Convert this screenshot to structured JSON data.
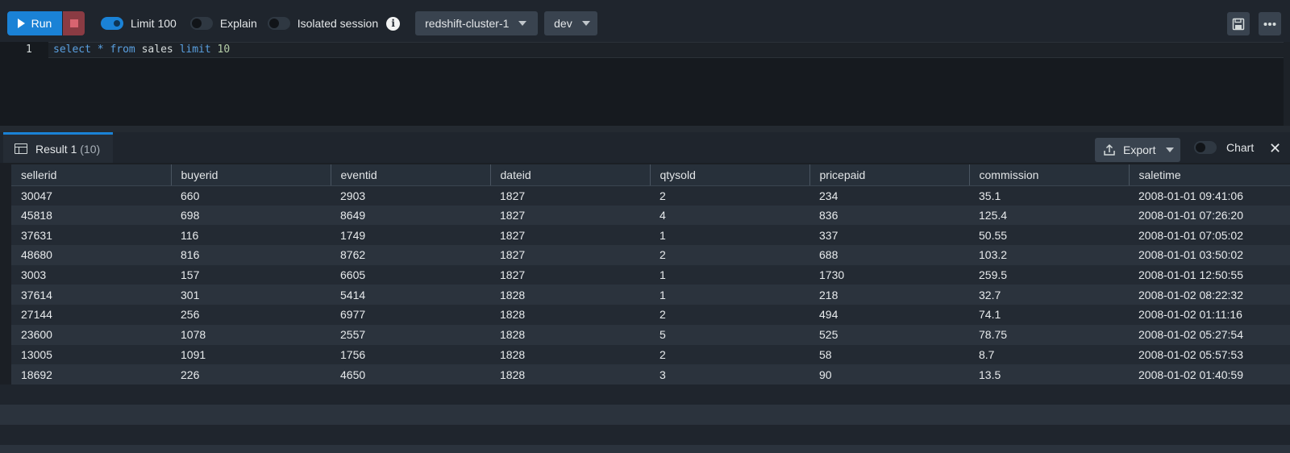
{
  "toolbar": {
    "run_label": "Run",
    "limit_label": "Limit 100",
    "explain_label": "Explain",
    "isolated_label": "Isolated session",
    "cluster": "redshift-cluster-1",
    "database": "dev"
  },
  "editor": {
    "line_number": "1",
    "tokens": [
      "select",
      "*",
      "from",
      "sales",
      "limit",
      "10"
    ]
  },
  "results": {
    "tab_label": "Result 1",
    "tab_count": "(10)",
    "export_label": "Export",
    "chart_label": "Chart",
    "columns": [
      "sellerid",
      "buyerid",
      "eventid",
      "dateid",
      "qtysold",
      "pricepaid",
      "commission",
      "saletime"
    ],
    "rows": [
      [
        "30047",
        "660",
        "2903",
        "1827",
        "2",
        "234",
        "35.1",
        "2008-01-01 09:41:06"
      ],
      [
        "45818",
        "698",
        "8649",
        "1827",
        "4",
        "836",
        "125.4",
        "2008-01-01 07:26:20"
      ],
      [
        "37631",
        "116",
        "1749",
        "1827",
        "1",
        "337",
        "50.55",
        "2008-01-01 07:05:02"
      ],
      [
        "48680",
        "816",
        "8762",
        "1827",
        "2",
        "688",
        "103.2",
        "2008-01-01 03:50:02"
      ],
      [
        "3003",
        "157",
        "6605",
        "1827",
        "1",
        "1730",
        "259.5",
        "2008-01-01 12:50:55"
      ],
      [
        "37614",
        "301",
        "5414",
        "1828",
        "1",
        "218",
        "32.7",
        "2008-01-02 08:22:32"
      ],
      [
        "27144",
        "256",
        "6977",
        "1828",
        "2",
        "494",
        "74.1",
        "2008-01-02 01:11:16"
      ],
      [
        "23600",
        "1078",
        "2557",
        "1828",
        "5",
        "525",
        "78.75",
        "2008-01-02 05:27:54"
      ],
      [
        "13005",
        "1091",
        "1756",
        "1828",
        "2",
        "58",
        "8.7",
        "2008-01-02 05:57:53"
      ],
      [
        "18692",
        "226",
        "4650",
        "1828",
        "3",
        "90",
        "13.5",
        "2008-01-02 01:40:59"
      ]
    ]
  },
  "colors": {
    "accent": "#1a82d6",
    "stop": "#8a3b43",
    "background": "#1f252d"
  },
  "icons": {
    "run": "play-icon",
    "stop": "stop-icon",
    "info": "info-icon",
    "save": "save-icon",
    "more": "more-icon",
    "export": "export-icon",
    "table": "table-icon",
    "close": "close-icon"
  }
}
